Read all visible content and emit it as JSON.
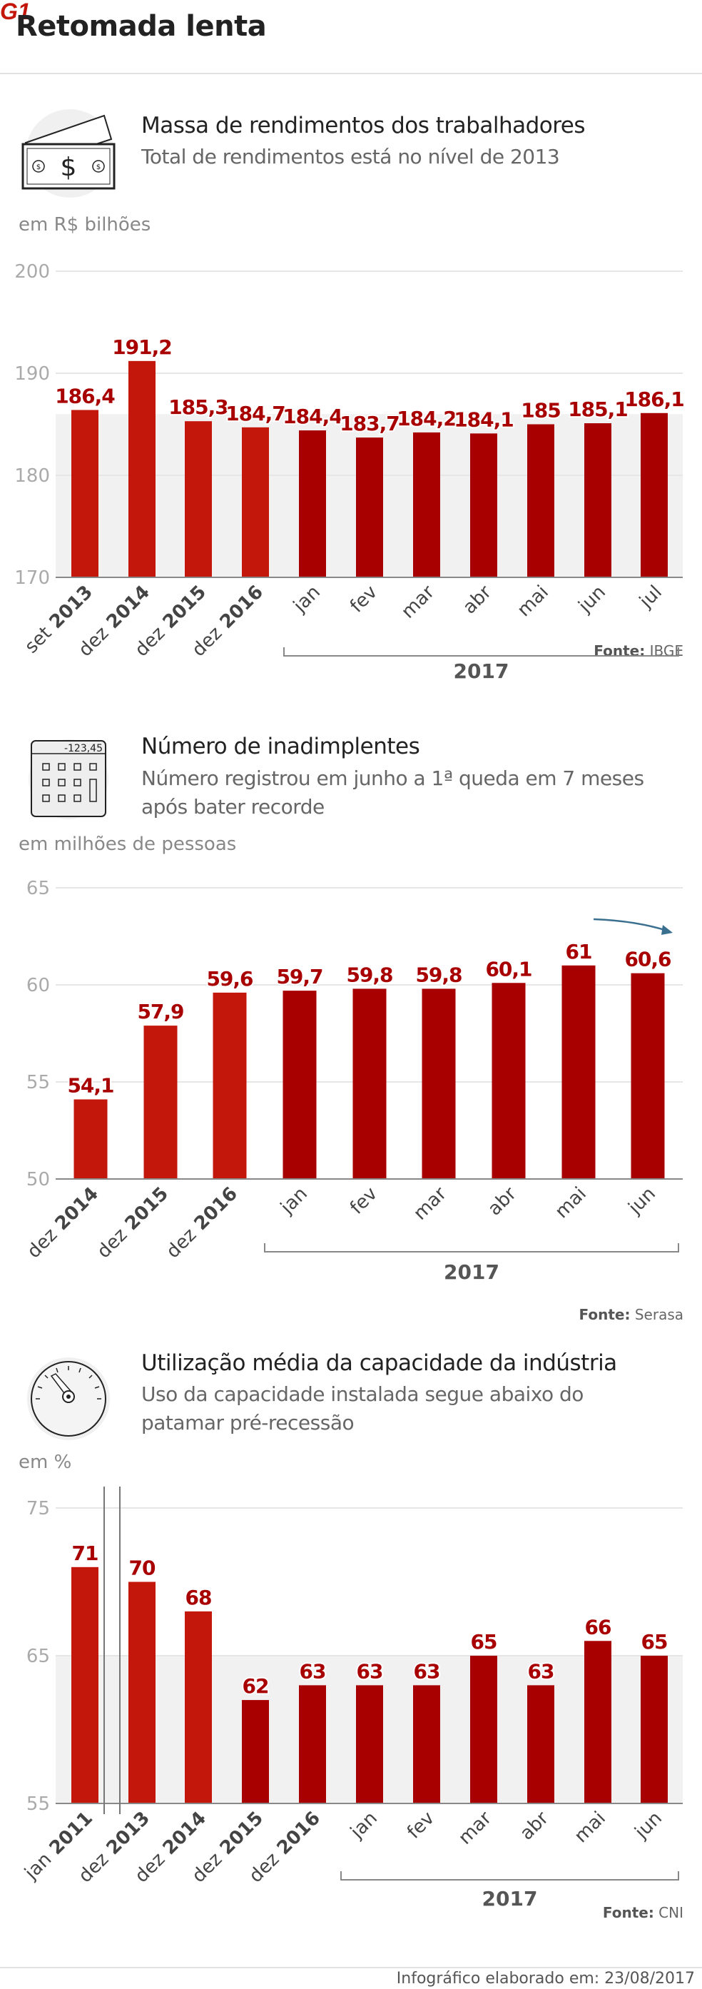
{
  "page": {
    "title": "Retomada lenta",
    "footer": "Infográfico elaborado em: 23/08/2017",
    "logo_text": "G1"
  },
  "colors": {
    "bar_past": "#c4170c",
    "bar_2017": "#a80000",
    "value_label": "#a80000",
    "band": "#f1f1f1",
    "arrow": "#3a6f8f"
  },
  "chart_data": [
    {
      "type": "bar",
      "title": "Massa de rendimentos dos trabalhadores",
      "subtitle": "Total de rendimentos está no nível de 2013",
      "ylabel": "em R$ bilhões",
      "icon": "money-bills-icon",
      "source_label": "Fonte:",
      "source": "IBGE",
      "ylim": [
        170,
        200
      ],
      "yticks": [
        "170",
        "180",
        "190",
        "200"
      ],
      "shaded_band_from": 186,
      "categories": [
        {
          "month": "set",
          "year": "2013"
        },
        {
          "month": "dez",
          "year": "2014"
        },
        {
          "month": "dez",
          "year": "2015"
        },
        {
          "month": "dez",
          "year": "2016"
        },
        {
          "month": "jan",
          "year": ""
        },
        {
          "month": "fev",
          "year": ""
        },
        {
          "month": "mar",
          "year": ""
        },
        {
          "month": "abr",
          "year": ""
        },
        {
          "month": "mai",
          "year": ""
        },
        {
          "month": "jun",
          "year": ""
        },
        {
          "month": "jul",
          "year": ""
        }
      ],
      "values": [
        186.4,
        191.2,
        185.3,
        184.7,
        184.4,
        183.7,
        184.2,
        184.1,
        185,
        185.1,
        186.1
      ],
      "value_labels": [
        "186,4",
        "191,2",
        "185,3",
        "184,7",
        "184,4",
        "183,7",
        "184,2",
        "184,1",
        "185",
        "185,1",
        "186,1"
      ],
      "group_label": "2017"
    },
    {
      "type": "bar",
      "title": "Número de inadimplentes",
      "subtitle": "Número registrou em junho a 1ª queda em 7 meses após bater recorde",
      "ylabel": "em milhões de pessoas",
      "icon": "calculator-icon",
      "icon_text": "-123,45",
      "source_label": "Fonte:",
      "source": "Serasa",
      "ylim": [
        50,
        65
      ],
      "yticks": [
        "50",
        "55",
        "60",
        "65"
      ],
      "categories": [
        {
          "month": "dez",
          "year": "2014"
        },
        {
          "month": "dez",
          "year": "2015"
        },
        {
          "month": "dez",
          "year": "2016"
        },
        {
          "month": "jan",
          "year": ""
        },
        {
          "month": "fev",
          "year": ""
        },
        {
          "month": "mar",
          "year": ""
        },
        {
          "month": "abr",
          "year": ""
        },
        {
          "month": "mai",
          "year": ""
        },
        {
          "month": "jun",
          "year": ""
        }
      ],
      "values": [
        54.1,
        57.9,
        59.6,
        59.7,
        59.8,
        59.8,
        60.1,
        61,
        60.6
      ],
      "value_labels": [
        "54,1",
        "57,9",
        "59,6",
        "59,7",
        "59,8",
        "59,8",
        "60,1",
        "61",
        "60,6"
      ],
      "group_label": "2017",
      "annotation": "downward-trend-arrow"
    },
    {
      "type": "bar",
      "title": "Utilização média da capacidade da indústria",
      "subtitle": "Uso da capacidade instalada segue abaixo do patamar pré-recessão",
      "ylabel": "em %",
      "icon": "gauge-icon",
      "source_label": "Fonte:",
      "source": "CNI",
      "ylim": [
        55,
        75
      ],
      "yticks": [
        "55",
        "65",
        "75"
      ],
      "shaded_band_from": 65,
      "axis_break_after_index": 0,
      "categories": [
        {
          "month": "jan",
          "year": "2011"
        },
        {
          "month": "dez",
          "year": "2013"
        },
        {
          "month": "dez",
          "year": "2014"
        },
        {
          "month": "dez",
          "year": "2015"
        },
        {
          "month": "dez",
          "year": "2016"
        },
        {
          "month": "jan",
          "year": ""
        },
        {
          "month": "fev",
          "year": ""
        },
        {
          "month": "mar",
          "year": ""
        },
        {
          "month": "abr",
          "year": ""
        },
        {
          "month": "mai",
          "year": ""
        },
        {
          "month": "jun",
          "year": ""
        }
      ],
      "values": [
        71,
        70,
        68,
        62,
        63,
        63,
        63,
        65,
        63,
        66,
        65
      ],
      "value_labels": [
        "71",
        "70",
        "68",
        "62",
        "63",
        "63",
        "63",
        "65",
        "63",
        "66",
        "65"
      ],
      "group_label": "2017"
    }
  ]
}
